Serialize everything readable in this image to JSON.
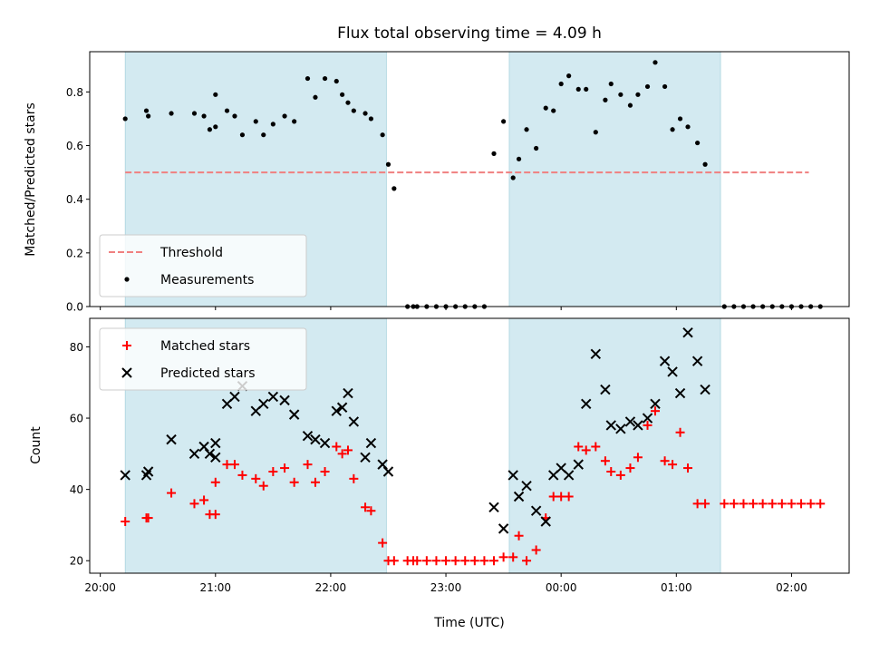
{
  "chart_data": {
    "type": "scatter",
    "title": "Flux total observing time = 4.09 h",
    "xlabel": "Time (UTC)",
    "x_tick_labels": [
      "20:00",
      "21:00",
      "22:00",
      "23:00",
      "00:00",
      "01:00",
      "02:00"
    ],
    "shaded_intervals": [
      {
        "start": "20:13",
        "end": "22:29",
        "color": "#d3eaf1"
      },
      {
        "start": "23:33",
        "end": "01:23",
        "color": "#d3eaf1"
      }
    ],
    "panels": [
      {
        "ylabel": "Matched/Predicted stars",
        "ylim": [
          0,
          0.95
        ],
        "y_ticks": [
          "0.0",
          "0.2",
          "0.4",
          "0.6",
          "0.8"
        ],
        "legend_position": "lower-left",
        "threshold": {
          "name": "Threshold",
          "value": 0.5,
          "x_start": "20:13",
          "x_end": "02:09",
          "color": "#f08080"
        },
        "series": [
          {
            "name": "Measurements",
            "marker": "dot",
            "color": "#000000",
            "points": [
              [
                "20:13",
                0.7
              ],
              [
                "20:24",
                0.73
              ],
              [
                "20:25",
                0.71
              ],
              [
                "20:37",
                0.72
              ],
              [
                "20:49",
                0.72
              ],
              [
                "20:54",
                0.71
              ],
              [
                "20:57",
                0.66
              ],
              [
                "21:00",
                0.67
              ],
              [
                "21:00",
                0.79
              ],
              [
                "21:06",
                0.73
              ],
              [
                "21:10",
                0.71
              ],
              [
                "21:14",
                0.64
              ],
              [
                "21:21",
                0.69
              ],
              [
                "21:25",
                0.64
              ],
              [
                "21:30",
                0.68
              ],
              [
                "21:36",
                0.71
              ],
              [
                "21:41",
                0.69
              ],
              [
                "21:48",
                0.85
              ],
              [
                "21:52",
                0.78
              ],
              [
                "21:57",
                0.85
              ],
              [
                "22:03",
                0.84
              ],
              [
                "22:06",
                0.79
              ],
              [
                "22:09",
                0.76
              ],
              [
                "22:12",
                0.73
              ],
              [
                "22:18",
                0.72
              ],
              [
                "22:21",
                0.7
              ],
              [
                "22:27",
                0.64
              ],
              [
                "22:30",
                0.53
              ],
              [
                "22:33",
                0.44
              ],
              [
                "22:40",
                0.0
              ],
              [
                "22:43",
                0.0
              ],
              [
                "22:45",
                0.0
              ],
              [
                "22:50",
                0.0
              ],
              [
                "22:55",
                0.0
              ],
              [
                "23:00",
                0.0
              ],
              [
                "23:05",
                0.0
              ],
              [
                "23:10",
                0.0
              ],
              [
                "23:15",
                0.0
              ],
              [
                "23:20",
                0.0
              ],
              [
                "23:25",
                0.57
              ],
              [
                "23:30",
                0.69
              ],
              [
                "23:35",
                0.48
              ],
              [
                "23:38",
                0.55
              ],
              [
                "23:42",
                0.66
              ],
              [
                "23:47",
                0.59
              ],
              [
                "23:52",
                0.74
              ],
              [
                "23:56",
                0.73
              ],
              [
                "00:00",
                0.83
              ],
              [
                "00:04",
                0.86
              ],
              [
                "00:09",
                0.81
              ],
              [
                "00:13",
                0.81
              ],
              [
                "00:18",
                0.65
              ],
              [
                "00:23",
                0.77
              ],
              [
                "00:26",
                0.83
              ],
              [
                "00:31",
                0.79
              ],
              [
                "00:36",
                0.75
              ],
              [
                "00:40",
                0.79
              ],
              [
                "00:45",
                0.82
              ],
              [
                "00:49",
                0.91
              ],
              [
                "00:54",
                0.82
              ],
              [
                "00:58",
                0.66
              ],
              [
                "01:02",
                0.7
              ],
              [
                "01:06",
                0.67
              ],
              [
                "01:11",
                0.61
              ],
              [
                "01:15",
                0.53
              ],
              [
                "01:25",
                0.0
              ],
              [
                "01:30",
                0.0
              ],
              [
                "01:35",
                0.0
              ],
              [
                "01:40",
                0.0
              ],
              [
                "01:45",
                0.0
              ],
              [
                "01:50",
                0.0
              ],
              [
                "01:55",
                0.0
              ],
              [
                "02:00",
                0.0
              ],
              [
                "02:05",
                0.0
              ],
              [
                "02:10",
                0.0
              ],
              [
                "02:15",
                0.0
              ]
            ]
          }
        ]
      },
      {
        "ylabel": "Count",
        "ylim": [
          16.5,
          88
        ],
        "y_ticks": [
          "20",
          "40",
          "60",
          "80"
        ],
        "legend_position": "upper-left",
        "series": [
          {
            "name": "Matched stars",
            "marker": "plus",
            "color": "#ff0000",
            "points": [
              [
                "20:13",
                31
              ],
              [
                "20:24",
                32
              ],
              [
                "20:25",
                32
              ],
              [
                "20:37",
                39
              ],
              [
                "20:49",
                36
              ],
              [
                "20:54",
                37
              ],
              [
                "20:57",
                33
              ],
              [
                "21:00",
                33
              ],
              [
                "21:00",
                42
              ],
              [
                "21:06",
                47
              ],
              [
                "21:10",
                47
              ],
              [
                "21:14",
                44
              ],
              [
                "21:21",
                43
              ],
              [
                "21:25",
                41
              ],
              [
                "21:30",
                45
              ],
              [
                "21:36",
                46
              ],
              [
                "21:41",
                42
              ],
              [
                "21:48",
                47
              ],
              [
                "21:52",
                42
              ],
              [
                "21:57",
                45
              ],
              [
                "22:03",
                52
              ],
              [
                "22:06",
                50
              ],
              [
                "22:09",
                51
              ],
              [
                "22:12",
                43
              ],
              [
                "22:18",
                35
              ],
              [
                "22:21",
                34
              ],
              [
                "22:27",
                25
              ],
              [
                "22:30",
                20
              ],
              [
                "22:33",
                20
              ],
              [
                "22:40",
                20
              ],
              [
                "22:43",
                20
              ],
              [
                "22:45",
                20
              ],
              [
                "22:50",
                20
              ],
              [
                "22:55",
                20
              ],
              [
                "23:00",
                20
              ],
              [
                "23:05",
                20
              ],
              [
                "23:10",
                20
              ],
              [
                "23:15",
                20
              ],
              [
                "23:20",
                20
              ],
              [
                "23:25",
                20
              ],
              [
                "23:30",
                21
              ],
              [
                "23:35",
                21
              ],
              [
                "23:38",
                27
              ],
              [
                "23:42",
                20
              ],
              [
                "23:47",
                23
              ],
              [
                "23:52",
                32
              ],
              [
                "23:56",
                38
              ],
              [
                "00:00",
                38
              ],
              [
                "00:04",
                38
              ],
              [
                "00:09",
                52
              ],
              [
                "00:13",
                51
              ],
              [
                "00:18",
                52
              ],
              [
                "00:23",
                48
              ],
              [
                "00:26",
                45
              ],
              [
                "00:31",
                44
              ],
              [
                "00:36",
                46
              ],
              [
                "00:40",
                49
              ],
              [
                "00:45",
                58
              ],
              [
                "00:49",
                62
              ],
              [
                "00:54",
                48
              ],
              [
                "00:58",
                47
              ],
              [
                "01:02",
                56
              ],
              [
                "01:06",
                46
              ],
              [
                "01:11",
                36
              ],
              [
                "01:15",
                36
              ],
              [
                "01:25",
                36
              ],
              [
                "01:30",
                36
              ],
              [
                "01:35",
                36
              ],
              [
                "01:40",
                36
              ],
              [
                "01:45",
                36
              ],
              [
                "01:50",
                36
              ],
              [
                "01:55",
                36
              ],
              [
                "02:00",
                36
              ],
              [
                "02:05",
                36
              ],
              [
                "02:10",
                36
              ],
              [
                "02:15",
                36
              ]
            ]
          },
          {
            "name": "Predicted stars",
            "marker": "x",
            "color": "#000000",
            "points": [
              [
                "20:13",
                44
              ],
              [
                "20:24",
                44
              ],
              [
                "20:25",
                45
              ],
              [
                "20:37",
                54
              ],
              [
                "20:49",
                50
              ],
              [
                "20:54",
                52
              ],
              [
                "20:57",
                50
              ],
              [
                "21:00",
                49
              ],
              [
                "21:00",
                53
              ],
              [
                "21:06",
                64
              ],
              [
                "21:10",
                66
              ],
              [
                "21:14",
                69
              ],
              [
                "21:21",
                62
              ],
              [
                "21:25",
                64
              ],
              [
                "21:30",
                66
              ],
              [
                "21:36",
                65
              ],
              [
                "21:41",
                61
              ],
              [
                "21:48",
                55
              ],
              [
                "21:52",
                54
              ],
              [
                "21:57",
                53
              ],
              [
                "22:03",
                62
              ],
              [
                "22:06",
                63
              ],
              [
                "22:09",
                67
              ],
              [
                "22:12",
                59
              ],
              [
                "22:18",
                49
              ],
              [
                "22:21",
                53
              ],
              [
                "22:27",
                47
              ],
              [
                "22:30",
                45
              ],
              [
                "23:25",
                35
              ],
              [
                "23:30",
                29
              ],
              [
                "23:35",
                44
              ],
              [
                "23:38",
                38
              ],
              [
                "23:42",
                41
              ],
              [
                "23:47",
                34
              ],
              [
                "23:52",
                31
              ],
              [
                "23:56",
                44
              ],
              [
                "00:00",
                46
              ],
              [
                "00:04",
                44
              ],
              [
                "00:09",
                47
              ],
              [
                "00:13",
                64
              ],
              [
                "00:18",
                78
              ],
              [
                "00:23",
                68
              ],
              [
                "00:26",
                58
              ],
              [
                "00:31",
                57
              ],
              [
                "00:36",
                59
              ],
              [
                "00:40",
                58
              ],
              [
                "00:45",
                60
              ],
              [
                "00:49",
                64
              ],
              [
                "00:54",
                76
              ],
              [
                "00:58",
                73
              ],
              [
                "01:02",
                67
              ],
              [
                "01:06",
                84
              ],
              [
                "01:11",
                76
              ],
              [
                "01:15",
                68
              ]
            ]
          }
        ]
      }
    ]
  }
}
